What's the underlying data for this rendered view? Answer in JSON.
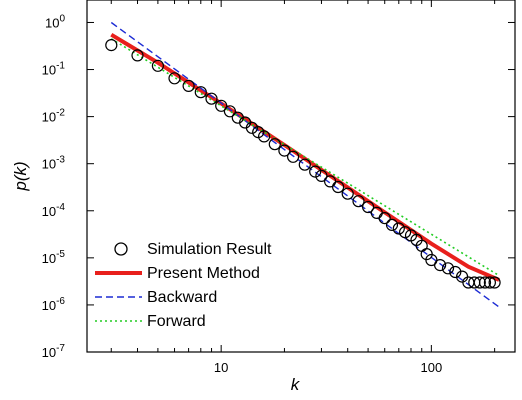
{
  "chart_data": {
    "type": "scatter",
    "xlabel": "k",
    "ylabel": "p(k)",
    "x_scale": "log",
    "y_scale": "log",
    "xlim": [
      2.3,
      250
    ],
    "ylim": [
      1e-07,
      3
    ],
    "x_ticks": [
      {
        "value": 10,
        "label": "10"
      },
      {
        "value": 100,
        "label": "100"
      }
    ],
    "y_ticks": [
      {
        "value": 1,
        "base": "10",
        "exp": "0"
      },
      {
        "value": 0.1,
        "base": "10",
        "exp": "-1"
      },
      {
        "value": 0.01,
        "base": "10",
        "exp": "-2"
      },
      {
        "value": 0.001,
        "base": "10",
        "exp": "-3"
      },
      {
        "value": 0.0001,
        "base": "10",
        "exp": "-4"
      },
      {
        "value": 1e-05,
        "base": "10",
        "exp": "-5"
      },
      {
        "value": 1e-06,
        "base": "10",
        "exp": "-6"
      },
      {
        "value": 1e-07,
        "base": "10",
        "exp": "-7"
      }
    ],
    "legend_position": "bottom-left",
    "series": [
      {
        "name": "Simulation Result",
        "kind": "markers",
        "marker": "open-circle",
        "color": "#000000",
        "x": [
          3,
          4,
          5,
          6,
          7,
          8,
          9,
          10,
          11,
          12,
          13,
          14,
          15,
          16,
          18,
          20,
          22,
          25,
          28,
          30,
          33,
          36,
          40,
          45,
          50,
          55,
          60,
          65,
          70,
          75,
          80,
          85,
          90,
          95,
          100,
          110,
          120,
          130,
          140,
          150,
          160,
          170,
          180,
          190,
          200
        ],
        "y": [
          0.33,
          0.2,
          0.12,
          0.065,
          0.045,
          0.033,
          0.024,
          0.017,
          0.013,
          0.0095,
          0.0075,
          0.0058,
          0.0047,
          0.0038,
          0.0026,
          0.0019,
          0.0014,
          0.00095,
          0.00068,
          0.00055,
          0.00042,
          0.00032,
          0.00023,
          0.00016,
          0.00012,
          9e-05,
          7e-05,
          5e-05,
          4.2e-05,
          3.5e-05,
          3e-05,
          2.4e-05,
          1.8e-05,
          1.2e-05,
          9e-06,
          7e-06,
          6e-06,
          5e-06,
          4e-06,
          3e-06,
          3e-06,
          3e-06,
          3e-06,
          3e-06,
          3e-06
        ]
      },
      {
        "name": "Present Method",
        "kind": "line",
        "style": "solid",
        "color": "#e8201c",
        "x": [
          3,
          5,
          10,
          20,
          50,
          100,
          150,
          210
        ],
        "y": [
          0.55,
          0.14,
          0.019,
          0.0025,
          0.00016,
          2e-05,
          6.5e-06,
          3.4e-06
        ]
      },
      {
        "name": "Backward",
        "kind": "line",
        "style": "dashed",
        "color": "#1c2bd4",
        "x": [
          3,
          210
        ],
        "y": [
          1.0,
          9e-07
        ]
      },
      {
        "name": "Forward",
        "kind": "line",
        "style": "dotted",
        "color": "#22cc22",
        "x": [
          3,
          210
        ],
        "y": [
          0.45,
          4.2e-06
        ]
      }
    ]
  }
}
